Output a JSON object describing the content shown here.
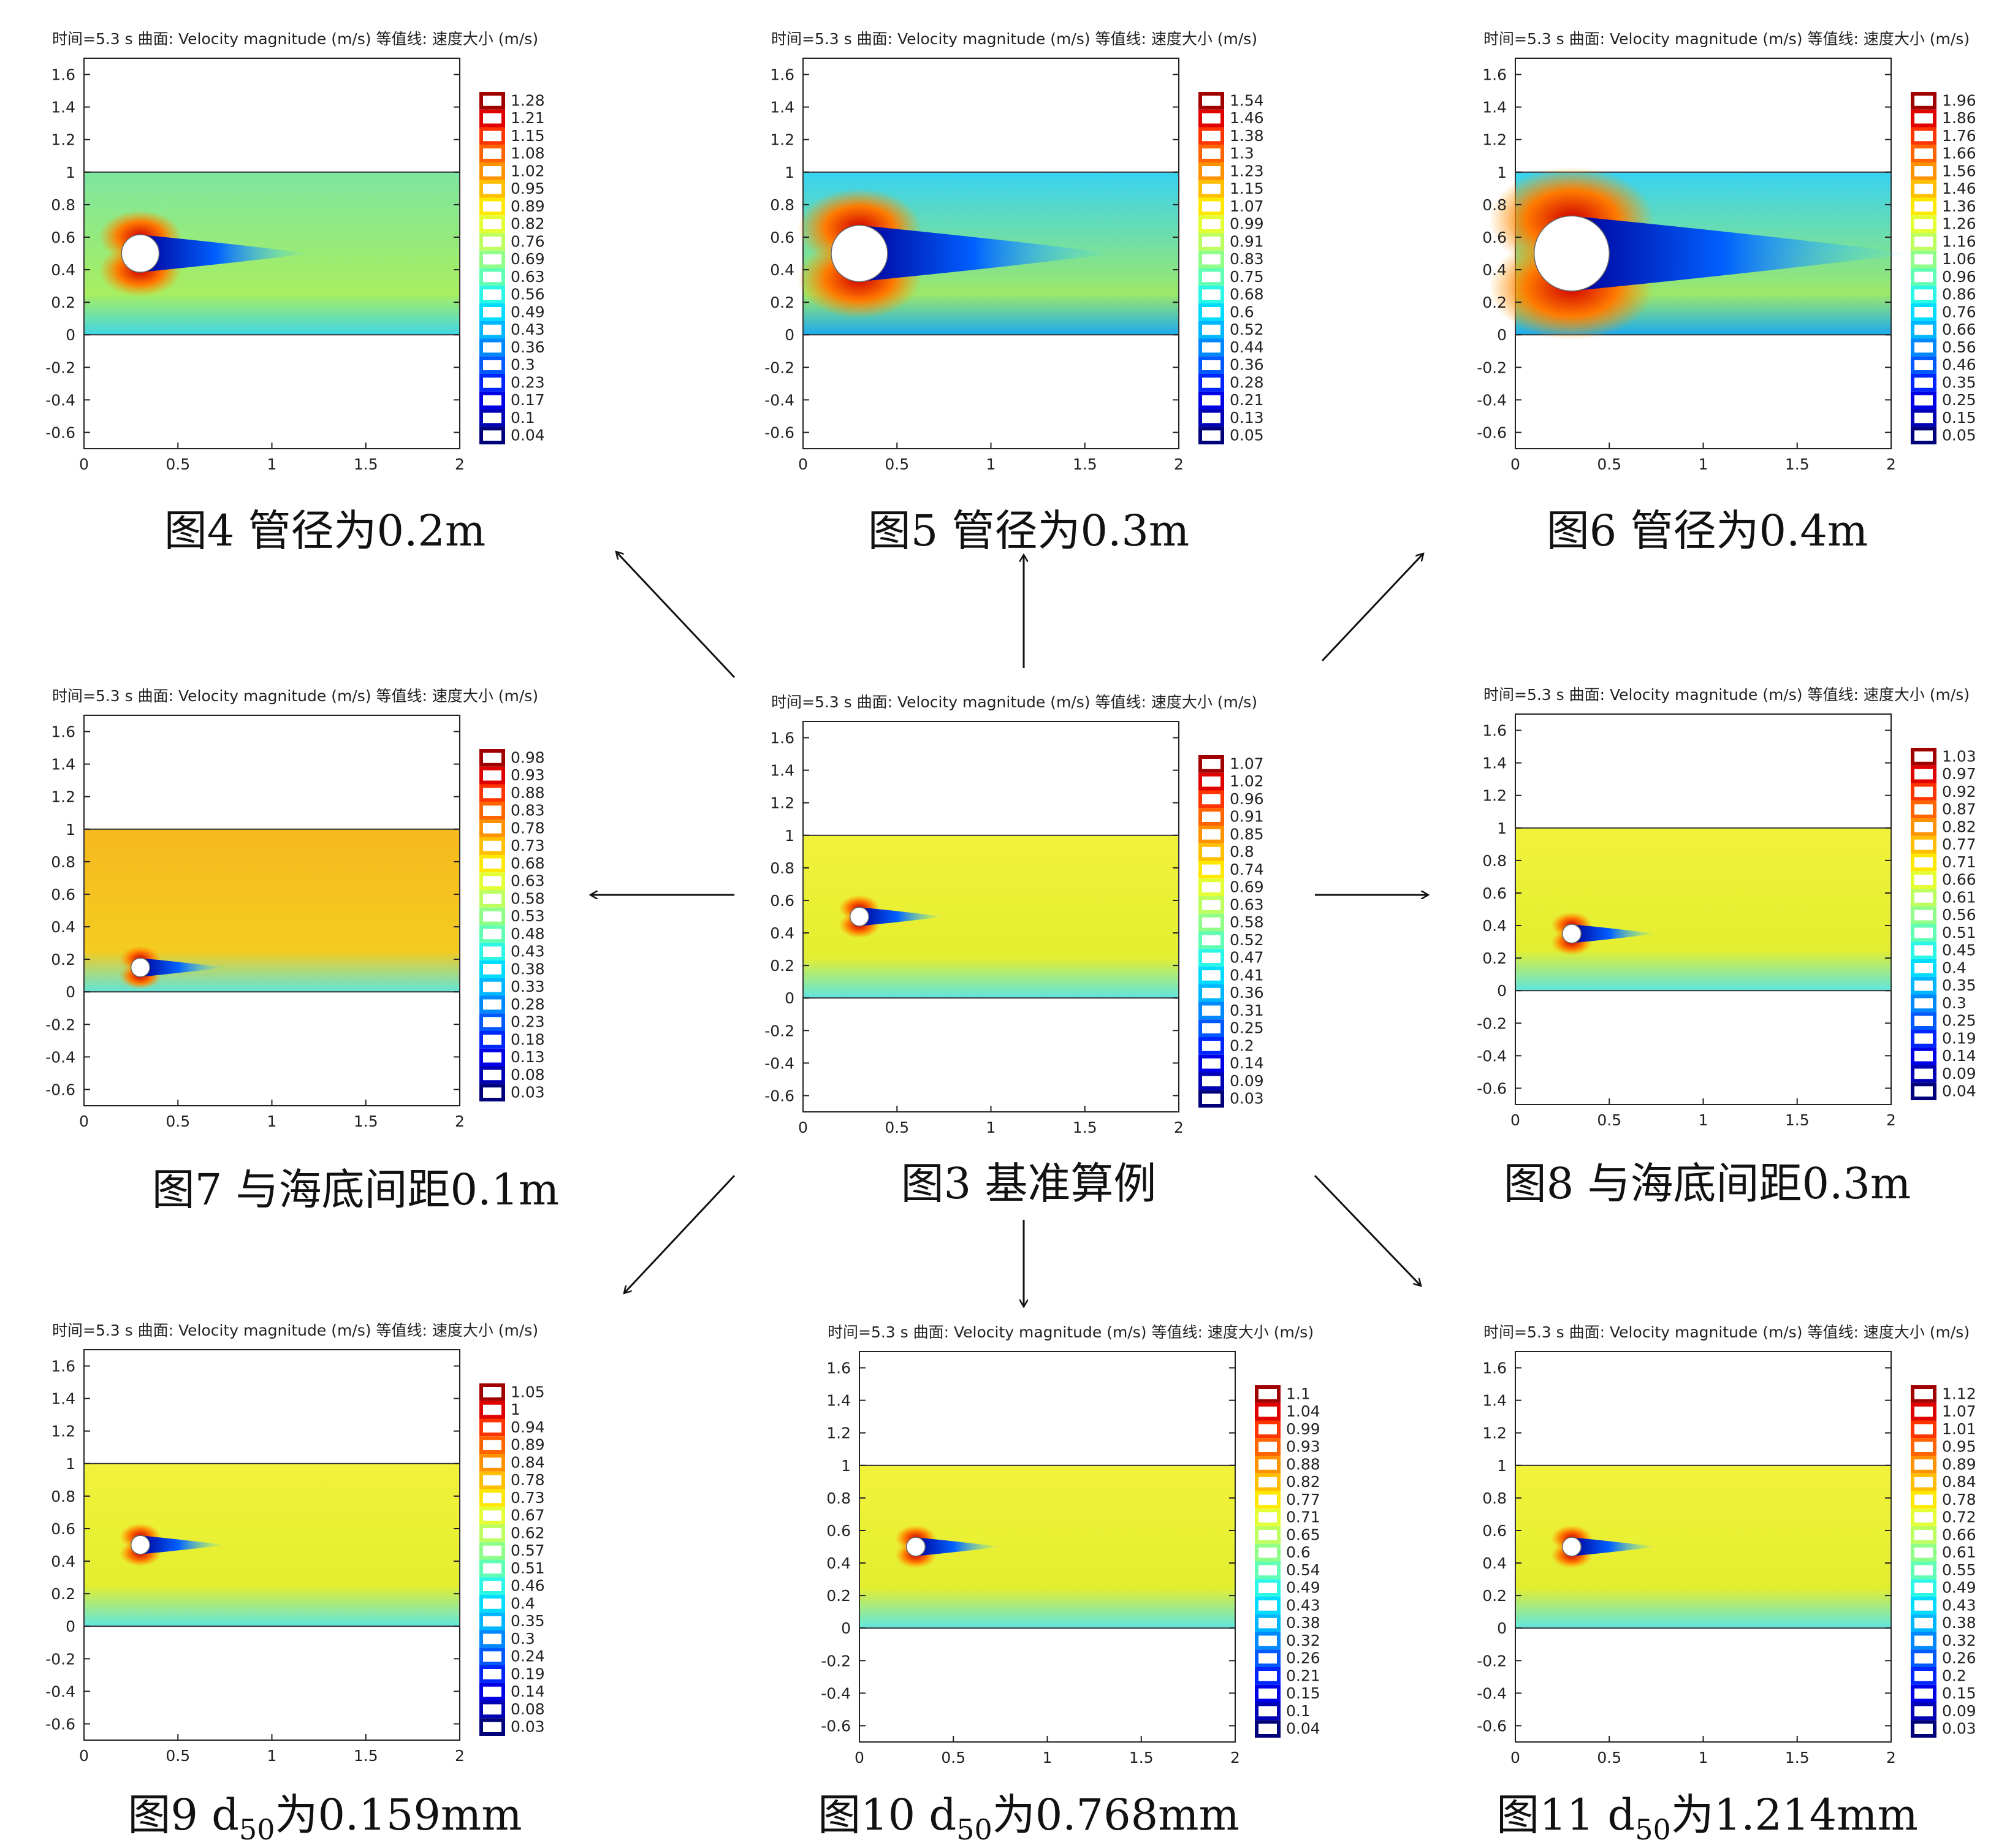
{
  "header_time": "时间=5.3 s",
  "header_surface": "曲面: Velocity magnitude (m/s)",
  "header_contour": "等值线: 速度大小 (m/s)",
  "chart_data": [
    {
      "id": "fig4",
      "type": "heatmap",
      "caption": {
        "prefix": "图4  管径为0.2m",
        "sub": "",
        "suffix": ""
      },
      "xticks": [
        "0",
        "0.5",
        "1",
        "1.5",
        "2"
      ],
      "yticks": [
        "1.6",
        "1.4",
        "1.2",
        "1",
        "0.8",
        "0.6",
        "0.4",
        "0.2",
        "0",
        "-0.2",
        "-0.4",
        "-0.6"
      ],
      "xlim": [
        0,
        2
      ],
      "ylim": [
        -0.7,
        1.7
      ],
      "cylinder": {
        "x": 0.3,
        "y": 0.5,
        "diameter": 0.2
      },
      "colorbar": [
        "1.28",
        "1.21",
        "1.15",
        "1.08",
        "1.02",
        "0.95",
        "0.89",
        "0.82",
        "0.76",
        "0.69",
        "0.63",
        "0.56",
        "0.49",
        "0.43",
        "0.36",
        "0.3",
        "0.23",
        "0.17",
        "0.1",
        "0.04"
      ],
      "field_base": "green"
    },
    {
      "id": "fig5",
      "type": "heatmap",
      "caption": {
        "prefix": "图5  管径为0.3m",
        "sub": "",
        "suffix": ""
      },
      "xticks": [
        "0",
        "0.5",
        "1",
        "1.5",
        "2"
      ],
      "yticks": [
        "1.6",
        "1.4",
        "1.2",
        "1",
        "0.8",
        "0.6",
        "0.4",
        "0.2",
        "0",
        "-0.2",
        "-0.4",
        "-0.6"
      ],
      "xlim": [
        0,
        2
      ],
      "ylim": [
        -0.7,
        1.7
      ],
      "cylinder": {
        "x": 0.3,
        "y": 0.5,
        "diameter": 0.3
      },
      "colorbar": [
        "1.54",
        "1.46",
        "1.38",
        "1.3",
        "1.23",
        "1.15",
        "1.07",
        "0.99",
        "0.91",
        "0.83",
        "0.75",
        "0.68",
        "0.6",
        "0.52",
        "0.44",
        "0.36",
        "0.28",
        "0.21",
        "0.13",
        "0.05"
      ],
      "field_base": "cyan"
    },
    {
      "id": "fig6",
      "type": "heatmap",
      "caption": {
        "prefix": "图6  管径为0.4m",
        "sub": "",
        "suffix": ""
      },
      "xticks": [
        "0",
        "0.5",
        "1",
        "1.5",
        "2"
      ],
      "yticks": [
        "1.6",
        "1.4",
        "1.2",
        "1",
        "0.8",
        "0.6",
        "0.4",
        "0.2",
        "0",
        "-0.2",
        "-0.4",
        "-0.6"
      ],
      "xlim": [
        0,
        2
      ],
      "ylim": [
        -0.7,
        1.7
      ],
      "cylinder": {
        "x": 0.3,
        "y": 0.5,
        "diameter": 0.4
      },
      "colorbar": [
        "1.96",
        "1.86",
        "1.76",
        "1.66",
        "1.56",
        "1.46",
        "1.36",
        "1.26",
        "1.16",
        "1.06",
        "0.96",
        "0.86",
        "0.76",
        "0.66",
        "0.56",
        "0.46",
        "0.35",
        "0.25",
        "0.15",
        "0.05"
      ],
      "field_base": "cyan"
    },
    {
      "id": "fig7",
      "type": "heatmap",
      "caption": {
        "prefix": "图7  与海底间距0.1m",
        "sub": "",
        "suffix": ""
      },
      "xticks": [
        "0",
        "0.5",
        "1",
        "1.5",
        "2"
      ],
      "yticks": [
        "1.6",
        "1.4",
        "1.2",
        "1",
        "0.8",
        "0.6",
        "0.4",
        "0.2",
        "0",
        "-0.2",
        "-0.4",
        "-0.6"
      ],
      "xlim": [
        0,
        2
      ],
      "ylim": [
        -0.7,
        1.7
      ],
      "cylinder": {
        "x": 0.3,
        "y": 0.15,
        "diameter": 0.1
      },
      "colorbar": [
        "0.98",
        "0.93",
        "0.88",
        "0.83",
        "0.78",
        "0.73",
        "0.68",
        "0.63",
        "0.58",
        "0.53",
        "0.48",
        "0.43",
        "0.38",
        "0.33",
        "0.28",
        "0.23",
        "0.18",
        "0.13",
        "0.08",
        "0.03"
      ],
      "field_base": "orange"
    },
    {
      "id": "fig3",
      "type": "heatmap",
      "caption": {
        "prefix": "图3  基准算例",
        "sub": "",
        "suffix": ""
      },
      "xticks": [
        "0",
        "0.5",
        "1",
        "1.5",
        "2"
      ],
      "yticks": [
        "1.6",
        "1.4",
        "1.2",
        "1",
        "0.8",
        "0.6",
        "0.4",
        "0.2",
        "0",
        "-0.2",
        "-0.4",
        "-0.6"
      ],
      "xlim": [
        0,
        2
      ],
      "ylim": [
        -0.7,
        1.7
      ],
      "cylinder": {
        "x": 0.3,
        "y": 0.5,
        "diameter": 0.1
      },
      "colorbar": [
        "1.07",
        "1.02",
        "0.96",
        "0.91",
        "0.85",
        "0.8",
        "0.74",
        "0.69",
        "0.63",
        "0.58",
        "0.52",
        "0.47",
        "0.41",
        "0.36",
        "0.31",
        "0.25",
        "0.2",
        "0.14",
        "0.09",
        "0.03"
      ],
      "field_base": "yellow"
    },
    {
      "id": "fig8",
      "type": "heatmap",
      "caption": {
        "prefix": "图8  与海底间距0.3m",
        "sub": "",
        "suffix": ""
      },
      "xticks": [
        "0",
        "0.5",
        "1",
        "1.5",
        "2"
      ],
      "yticks": [
        "1.6",
        "1.4",
        "1.2",
        "1",
        "0.8",
        "0.6",
        "0.4",
        "0.2",
        "0",
        "-0.2",
        "-0.4",
        "-0.6"
      ],
      "xlim": [
        0,
        2
      ],
      "ylim": [
        -0.7,
        1.7
      ],
      "cylinder": {
        "x": 0.3,
        "y": 0.35,
        "diameter": 0.1
      },
      "colorbar": [
        "1.03",
        "0.97",
        "0.92",
        "0.87",
        "0.82",
        "0.77",
        "0.71",
        "0.66",
        "0.61",
        "0.56",
        "0.51",
        "0.45",
        "0.4",
        "0.35",
        "0.3",
        "0.25",
        "0.19",
        "0.14",
        "0.09",
        "0.04"
      ],
      "field_base": "yellow"
    },
    {
      "id": "fig9",
      "type": "heatmap",
      "caption": {
        "prefix": "图9  d",
        "sub": "50",
        "suffix": "为0.159mm"
      },
      "xticks": [
        "0",
        "0.5",
        "1",
        "1.5",
        "2"
      ],
      "yticks": [
        "1.6",
        "1.4",
        "1.2",
        "1",
        "0.8",
        "0.6",
        "0.4",
        "0.2",
        "0",
        "-0.2",
        "-0.4",
        "-0.6"
      ],
      "xlim": [
        0,
        2
      ],
      "ylim": [
        -0.7,
        1.7
      ],
      "cylinder": {
        "x": 0.3,
        "y": 0.5,
        "diameter": 0.1
      },
      "colorbar": [
        "1.05",
        "1",
        "0.94",
        "0.89",
        "0.84",
        "0.78",
        "0.73",
        "0.67",
        "0.62",
        "0.57",
        "0.51",
        "0.46",
        "0.4",
        "0.35",
        "0.3",
        "0.24",
        "0.19",
        "0.14",
        "0.08",
        "0.03"
      ],
      "field_base": "yellow"
    },
    {
      "id": "fig10",
      "type": "heatmap",
      "caption": {
        "prefix": "图10  d",
        "sub": "50",
        "suffix": "为0.768mm"
      },
      "xticks": [
        "0",
        "0.5",
        "1",
        "1.5",
        "2"
      ],
      "yticks": [
        "1.6",
        "1.4",
        "1.2",
        "1",
        "0.8",
        "0.6",
        "0.4",
        "0.2",
        "0",
        "-0.2",
        "-0.4",
        "-0.6"
      ],
      "xlim": [
        0,
        2
      ],
      "ylim": [
        -0.7,
        1.7
      ],
      "cylinder": {
        "x": 0.3,
        "y": 0.5,
        "diameter": 0.1
      },
      "colorbar": [
        "1.1",
        "1.04",
        "0.99",
        "0.93",
        "0.88",
        "0.82",
        "0.77",
        "0.71",
        "0.65",
        "0.6",
        "0.54",
        "0.49",
        "0.43",
        "0.38",
        "0.32",
        "0.26",
        "0.21",
        "0.15",
        "0.1",
        "0.04"
      ],
      "field_base": "yellow"
    },
    {
      "id": "fig11",
      "type": "heatmap",
      "caption": {
        "prefix": "图11  d",
        "sub": "50",
        "suffix": "为1.214mm"
      },
      "xticks": [
        "0",
        "0.5",
        "1",
        "1.5",
        "2"
      ],
      "yticks": [
        "1.6",
        "1.4",
        "1.2",
        "1",
        "0.8",
        "0.6",
        "0.4",
        "0.2",
        "0",
        "-0.2",
        "-0.4",
        "-0.6"
      ],
      "xlim": [
        0,
        2
      ],
      "ylim": [
        -0.7,
        1.7
      ],
      "cylinder": {
        "x": 0.3,
        "y": 0.5,
        "diameter": 0.1
      },
      "colorbar": [
        "1.12",
        "1.07",
        "1.01",
        "0.95",
        "0.89",
        "0.84",
        "0.78",
        "0.72",
        "0.66",
        "0.61",
        "0.55",
        "0.49",
        "0.43",
        "0.38",
        "0.32",
        "0.26",
        "0.2",
        "0.15",
        "0.09",
        "0.03"
      ],
      "field_base": "yellow"
    }
  ]
}
